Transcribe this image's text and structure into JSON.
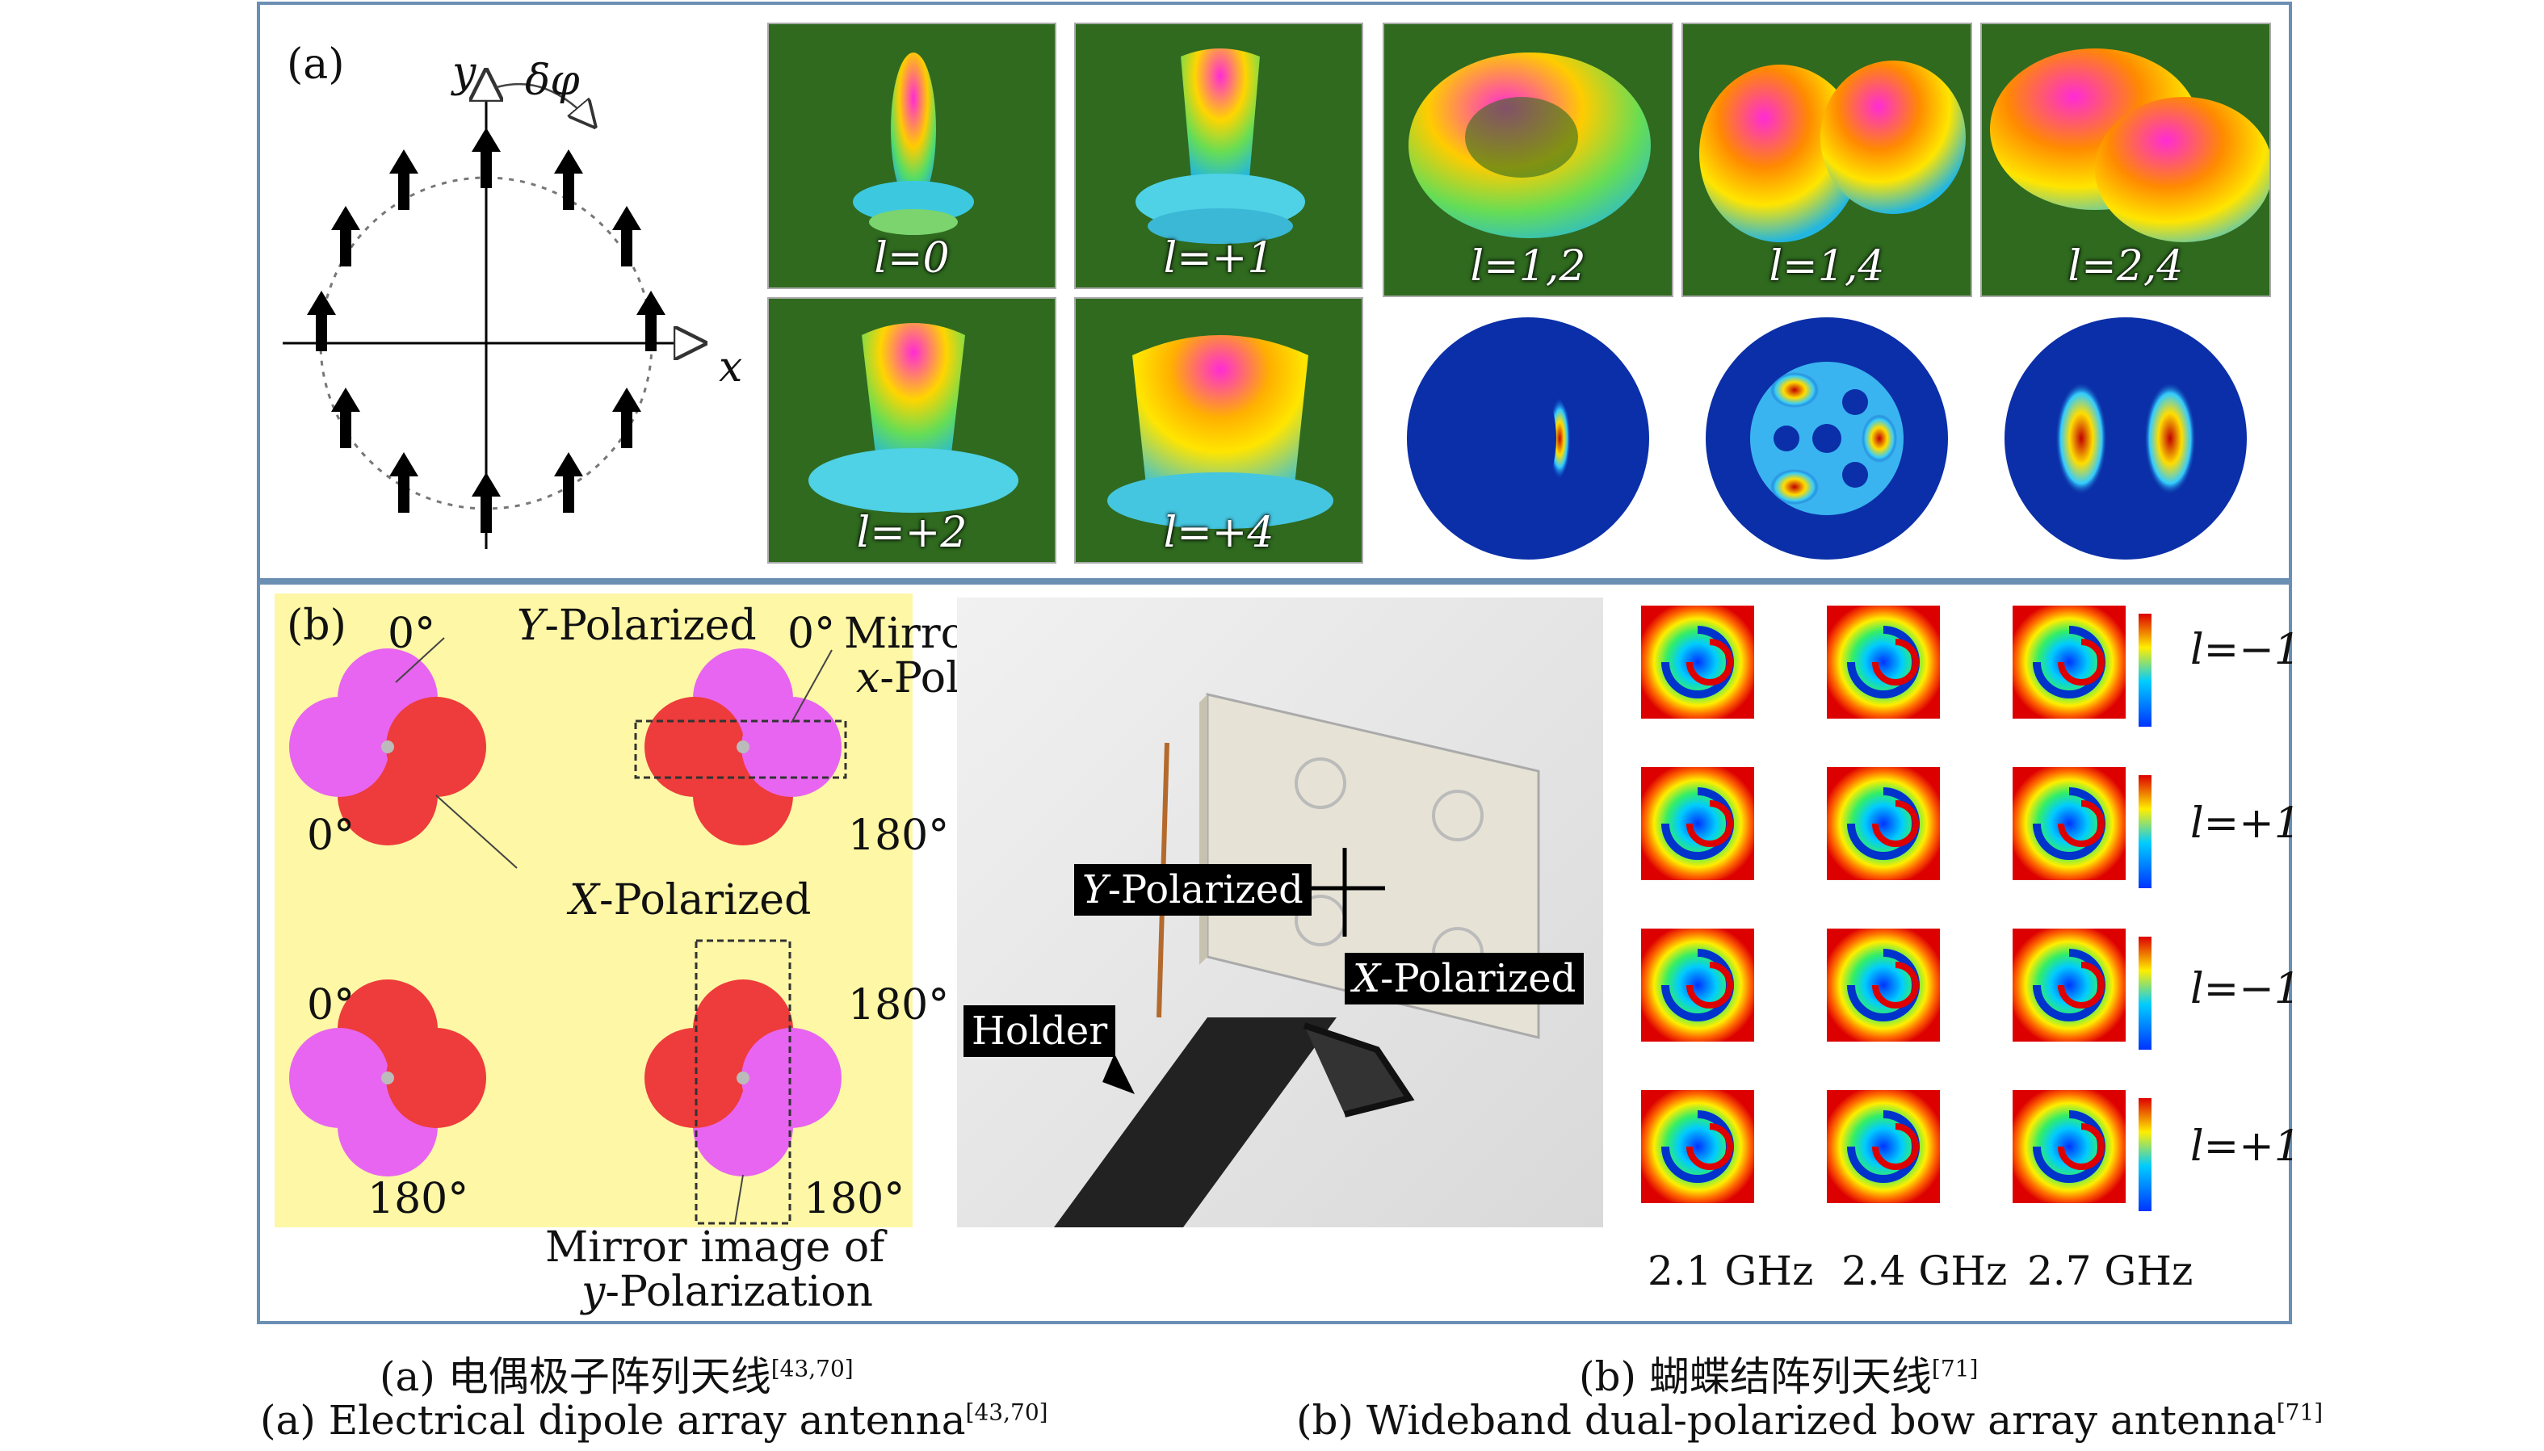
{
  "panel_a": {
    "tag": "(a)",
    "axis_x": "x",
    "axis_y": "y",
    "phase_label": "δφ",
    "top_tiles": [
      "l=0",
      "l=+1"
    ],
    "bottom_tiles": [
      "l=+2",
      "l=+4"
    ],
    "combo_tiles": [
      "l=1,2",
      "l=1,4",
      "l=2,4"
    ]
  },
  "panel_b": {
    "tag": "(b)",
    "deg_0": "0°",
    "deg_180": "180°",
    "y_polarized": "Y-Polarized",
    "x_polarized": "X-Polarized",
    "mirror_x_1": "Mirror image of",
    "mirror_x_2": "x-Polarization",
    "mirror_y_1": "Mirror image of",
    "mirror_y_2": "y-Polarization",
    "photo_y_tag": "Y-Polarized",
    "photo_x_tag": "X-Polarized",
    "photo_holder_tag": "Holder",
    "row_labels": [
      "l=−1",
      "l=+1",
      "l=−1",
      "l=+1"
    ],
    "freqs": [
      "2.1 GHz",
      "2.4 GHz",
      "2.7 GHz"
    ]
  },
  "captions": {
    "a_cn": "(a) 电偶极子阵列天线",
    "a_cn_ref": "[43,70]",
    "a_en": "(a) Electrical dipole array antenna",
    "a_en_ref": "[43,70]",
    "b_cn": "(b) 蝴蝶结阵列天线",
    "b_cn_ref": "[71]",
    "b_en": "(b) Wideband dual-polarized bow array antenna",
    "b_en_ref": "[71]"
  },
  "colors": {
    "frame": "#6b8fb3",
    "yellow_bg": "#fdf7a6",
    "magenta_petal": "#e765f0",
    "red_petal": "#ee3b3b"
  }
}
